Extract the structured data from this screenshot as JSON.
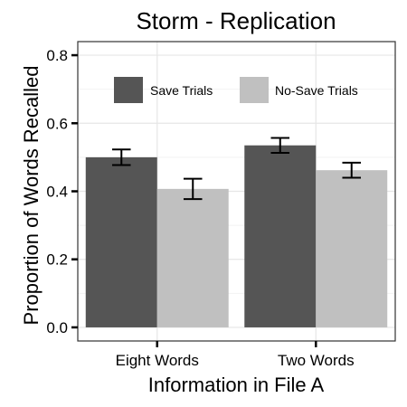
{
  "chart_data": {
    "type": "bar",
    "title": "Storm - Replication",
    "xlabel": "Information in File A",
    "ylabel": "Proportion of Words Recalled",
    "categories": [
      "Eight Words",
      "Two Words"
    ],
    "series": [
      {
        "name": "Save Trials",
        "color": "#555555",
        "values": [
          0.5,
          0.535
        ],
        "error": [
          0.023,
          0.022
        ]
      },
      {
        "name": "No-Save Trials",
        "color": "#c0c0c0",
        "values": [
          0.407,
          0.462
        ],
        "error": [
          0.03,
          0.022
        ]
      }
    ],
    "ylim": [
      -0.04,
      0.84
    ],
    "yticks": [
      0.0,
      0.2,
      0.4,
      0.6,
      0.8
    ],
    "ytick_labels": [
      "0.0",
      "0.2",
      "0.4",
      "0.6",
      "0.8"
    ],
    "grid": true,
    "legend_position": "top"
  }
}
